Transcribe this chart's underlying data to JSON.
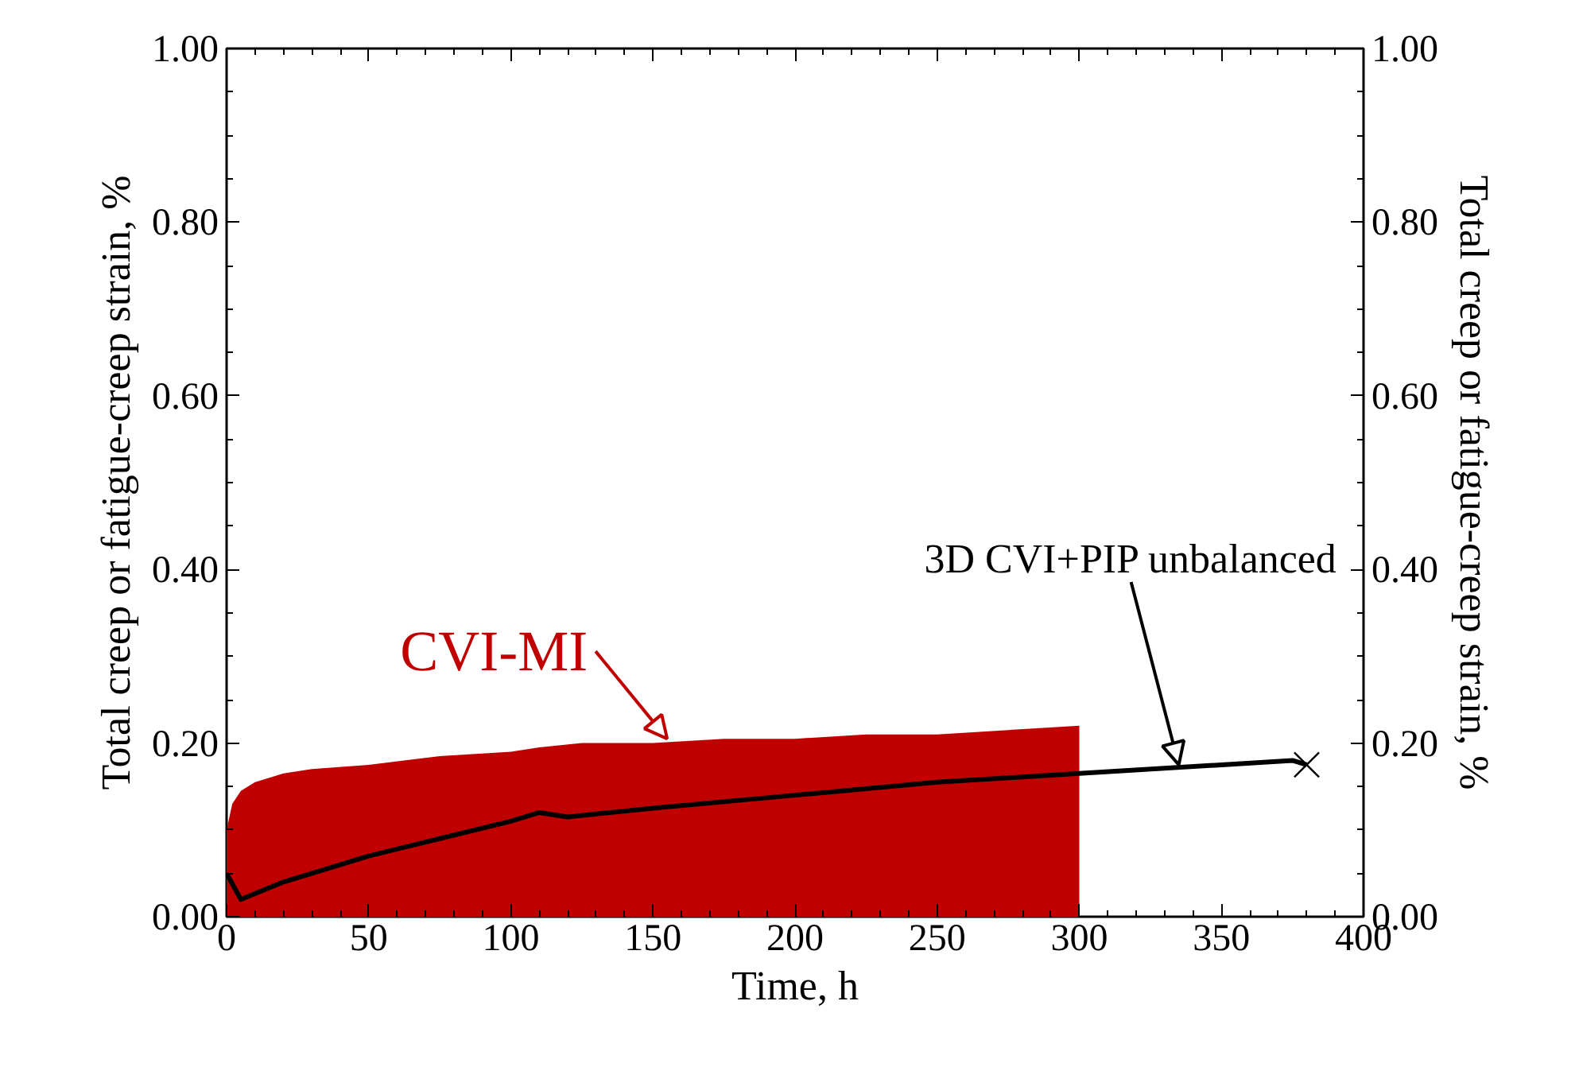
{
  "chart_data": {
    "type": "line",
    "xlabel": "Time, h",
    "ylabel": "Total creep or fatigue-creep strain, %",
    "y2label": "Total creep or fatigue-creep strain, %",
    "xlim": [
      0,
      400
    ],
    "xticks": [
      0,
      50,
      100,
      150,
      200,
      250,
      300,
      350,
      400
    ],
    "ylim": [
      0,
      1
    ],
    "yticks": [
      {
        "value": 0,
        "label": "0.00"
      },
      {
        "value": 0.2,
        "label": "0.20"
      },
      {
        "value": 0.4,
        "label": "0.40"
      },
      {
        "value": 0.6,
        "label": "0.60"
      },
      {
        "value": 0.8,
        "label": "0.80"
      },
      {
        "value": 1,
        "label": "1.00"
      }
    ],
    "y2lim": [
      0,
      1
    ],
    "y2ticks": [
      {
        "value": 0,
        "label": "0.00"
      },
      {
        "value": 0.2,
        "label": "0.20"
      },
      {
        "value": 0.4,
        "label": "0.40"
      },
      {
        "value": 0.6,
        "label": "0.60"
      },
      {
        "value": 0.8,
        "label": "0.80"
      },
      {
        "value": 1,
        "label": "1.00"
      }
    ],
    "grid": false,
    "series": [
      {
        "type": "area",
        "color": "#c00000",
        "x": [
          0,
          2,
          5,
          10,
          20,
          30,
          50,
          75,
          100,
          110,
          125,
          150,
          175,
          200,
          225,
          250,
          275,
          300
        ],
        "values": [
          0.1,
          0.13,
          0.145,
          0.155,
          0.165,
          0.17,
          0.175,
          0.185,
          0.19,
          0.195,
          0.2,
          0.2,
          0.205,
          0.205,
          0.21,
          0.21,
          0.215,
          0.22
        ]
      },
      {
        "color": "#000000",
        "x": [
          0,
          5,
          20,
          50,
          75,
          100,
          110,
          120,
          150,
          200,
          250,
          300,
          350,
          375,
          380
        ],
        "values": [
          0.05,
          0.02,
          0.04,
          0.07,
          0.09,
          0.11,
          0.12,
          0.115,
          0.125,
          0.14,
          0.155,
          0.165,
          0.175,
          0.18,
          0.175
        ]
      },
      {
        "type": "scatter",
        "marker": "cross",
        "color": "#000000",
        "x": [
          380
        ],
        "values": [
          0.175
        ]
      }
    ],
    "annotations": [
      {
        "text": "CVI-MI",
        "x": 155,
        "y": 0.205
      },
      {
        "text": "3D CVI+PIP unbalanced",
        "x": 335,
        "y": 0.175
      }
    ]
  }
}
